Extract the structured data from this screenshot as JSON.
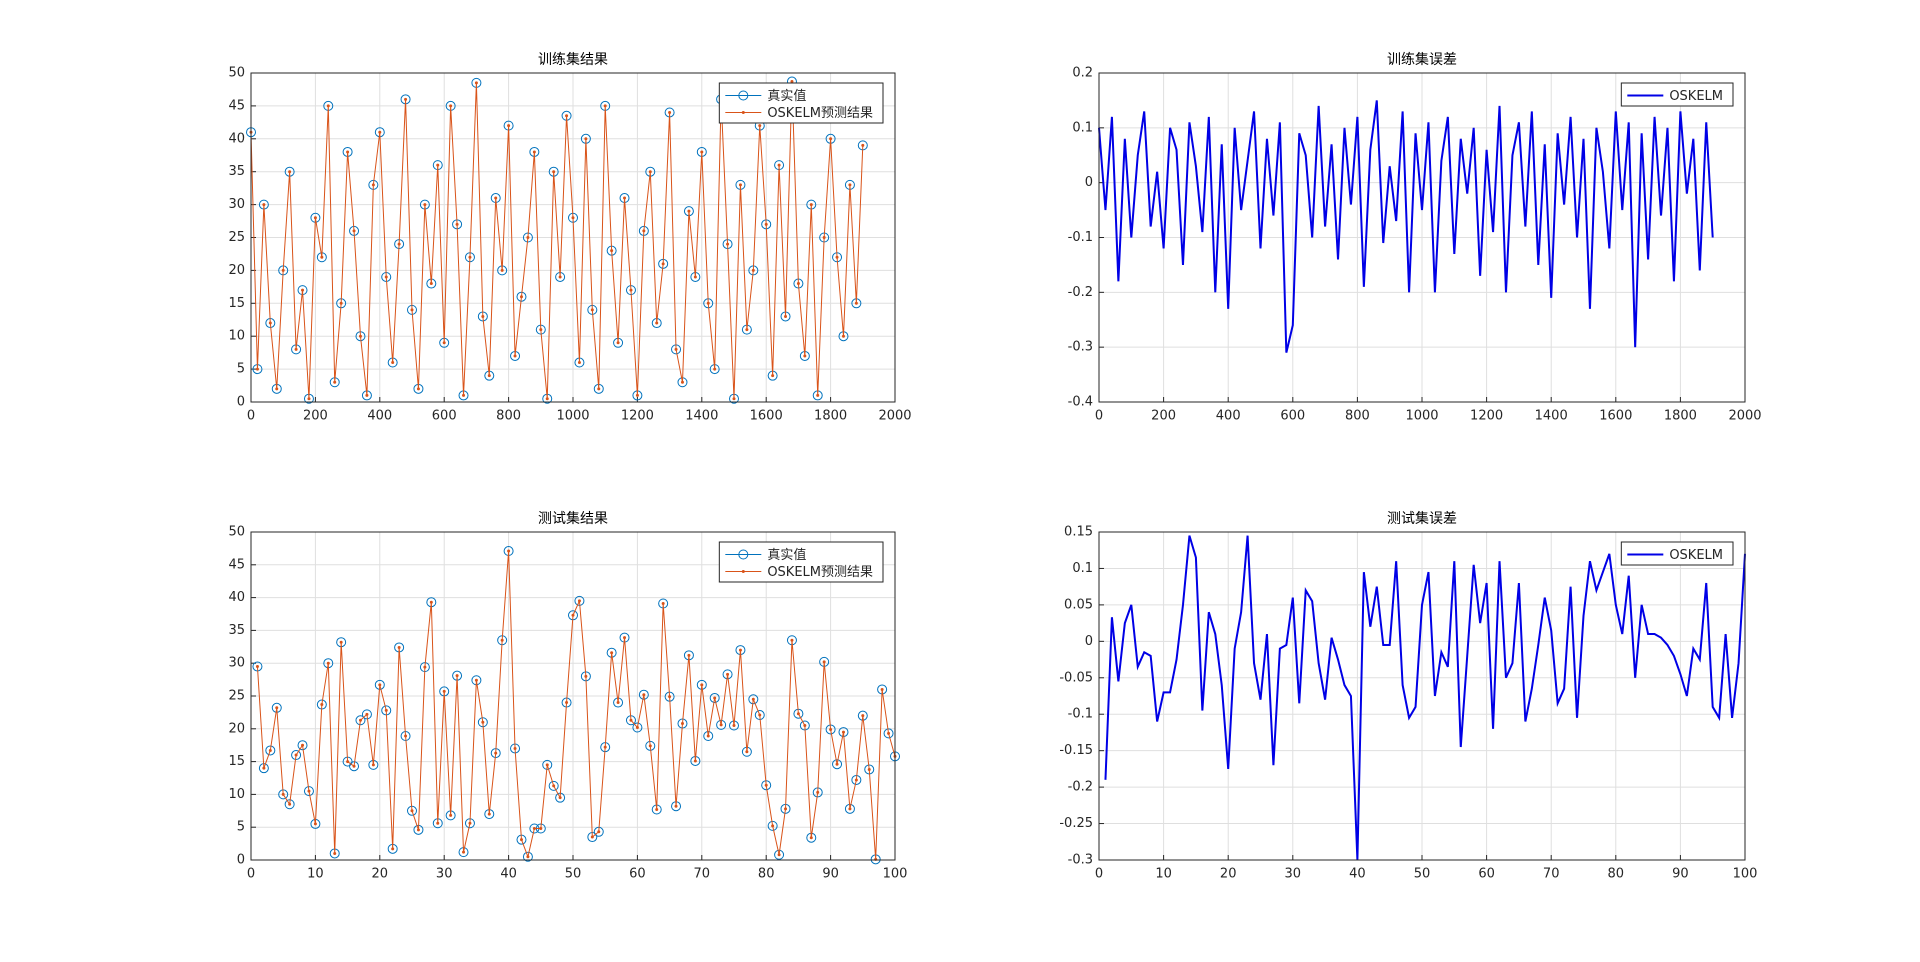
{
  "chart_data": [
    {
      "type": "line",
      "title": "训练集结果",
      "x": [
        0,
        20,
        40,
        60,
        80,
        100,
        120,
        140,
        160,
        180,
        200,
        220,
        240,
        260,
        280,
        300,
        320,
        340,
        360,
        380,
        400,
        420,
        440,
        460,
        480,
        500,
        520,
        540,
        560,
        580,
        600,
        620,
        640,
        660,
        680,
        700,
        720,
        740,
        760,
        780,
        800,
        820,
        840,
        860,
        880,
        900,
        920,
        940,
        960,
        980,
        1000,
        1020,
        1040,
        1060,
        1080,
        1100,
        1120,
        1140,
        1160,
        1180,
        1200,
        1220,
        1240,
        1260,
        1280,
        1300,
        1320,
        1340,
        1360,
        1380,
        1400,
        1420,
        1440,
        1460,
        1480,
        1500,
        1520,
        1540,
        1560,
        1580,
        1600,
        1620,
        1640,
        1660,
        1680,
        1700,
        1720,
        1740,
        1760,
        1780,
        1800,
        1820,
        1840,
        1860,
        1880,
        1900
      ],
      "series": [
        {
          "name": "真实值",
          "color": "#0072bd",
          "marker": "circle",
          "line": false,
          "values": [
            41,
            5,
            30,
            12,
            2,
            20,
            35,
            8,
            17,
            0.5,
            28,
            22,
            45,
            3,
            15,
            38,
            26,
            10,
            1,
            33,
            41,
            19,
            6,
            24,
            46,
            14,
            2,
            30,
            18,
            36,
            9,
            45,
            27,
            1,
            22,
            48.5,
            13,
            4,
            31,
            20,
            42,
            7,
            16,
            25,
            38,
            11,
            0.5,
            35,
            19,
            43.5,
            28,
            6,
            40,
            14,
            2,
            45,
            23,
            9,
            31,
            17,
            1,
            26,
            35,
            12,
            21,
            44,
            8,
            3,
            29,
            19,
            38,
            15,
            5,
            46,
            24,
            0.5,
            33,
            11,
            20,
            42,
            27,
            4,
            36,
            13,
            48.7,
            18,
            7,
            30,
            1,
            25,
            40,
            22,
            10,
            33,
            15,
            39
          ]
        },
        {
          "name": "OSKELM预测结果",
          "color": "#d95319",
          "marker": "dot",
          "line": true,
          "values": [
            41,
            5,
            30,
            12,
            2,
            20,
            35,
            8,
            17,
            0.5,
            28,
            22,
            45,
            3,
            15,
            38,
            26,
            10,
            1,
            33,
            41,
            19,
            6,
            24,
            46,
            14,
            2,
            30,
            18,
            36,
            9,
            45,
            27,
            1,
            22,
            48.5,
            13,
            4,
            31,
            20,
            42,
            7,
            16,
            25,
            38,
            11,
            0.5,
            35,
            19,
            43.5,
            28,
            6,
            40,
            14,
            2,
            45,
            23,
            9,
            31,
            17,
            1,
            26,
            35,
            12,
            21,
            44,
            8,
            3,
            29,
            19,
            38,
            15,
            5,
            46,
            24,
            0.5,
            33,
            11,
            20,
            42,
            27,
            4,
            36,
            13,
            48.7,
            18,
            7,
            30,
            1,
            25,
            40,
            22,
            10,
            33,
            15,
            39
          ]
        }
      ],
      "xlim": [
        0,
        2000
      ],
      "ylim": [
        0,
        50
      ],
      "xticks": [
        0,
        200,
        400,
        600,
        800,
        1000,
        1200,
        1400,
        1600,
        1800,
        2000
      ],
      "yticks": [
        0,
        5,
        10,
        15,
        20,
        25,
        30,
        35,
        40,
        45,
        50
      ],
      "grid": true,
      "legend": "upper right"
    },
    {
      "type": "line",
      "title": "训练集误差",
      "x": [
        0,
        20,
        40,
        60,
        80,
        100,
        120,
        140,
        160,
        180,
        200,
        220,
        240,
        260,
        280,
        300,
        320,
        340,
        360,
        380,
        400,
        420,
        440,
        460,
        480,
        500,
        520,
        540,
        560,
        580,
        600,
        620,
        640,
        660,
        680,
        700,
        720,
        740,
        760,
        780,
        800,
        820,
        840,
        860,
        880,
        900,
        920,
        940,
        960,
        980,
        1000,
        1020,
        1040,
        1060,
        1080,
        1100,
        1120,
        1140,
        1160,
        1180,
        1200,
        1220,
        1240,
        1260,
        1280,
        1300,
        1320,
        1340,
        1360,
        1380,
        1400,
        1420,
        1440,
        1460,
        1480,
        1500,
        1520,
        1540,
        1560,
        1580,
        1600,
        1620,
        1640,
        1660,
        1680,
        1700,
        1720,
        1740,
        1760,
        1780,
        1800,
        1820,
        1840,
        1860,
        1880,
        1900
      ],
      "series": [
        {
          "name": "OSKELM",
          "color": "#0000e6",
          "line": true,
          "values": [
            0.1,
            -0.05,
            0.12,
            -0.18,
            0.08,
            -0.1,
            0.05,
            0.13,
            -0.08,
            0.02,
            -0.12,
            0.1,
            0.06,
            -0.15,
            0.11,
            0.03,
            -0.09,
            0.12,
            -0.2,
            0.07,
            -0.23,
            0.1,
            -0.05,
            0.04,
            0.13,
            -0.12,
            0.08,
            -0.06,
            0.11,
            -0.31,
            -0.26,
            0.09,
            0.05,
            -0.1,
            0.14,
            -0.08,
            0.07,
            -0.14,
            0.1,
            -0.04,
            0.12,
            -0.19,
            0.06,
            0.15,
            -0.11,
            0.03,
            -0.07,
            0.13,
            -0.2,
            0.09,
            -0.05,
            0.11,
            -0.2,
            0.04,
            0.12,
            -0.13,
            0.08,
            -0.02,
            0.1,
            -0.17,
            0.06,
            -0.09,
            0.14,
            -0.2,
            0.05,
            0.11,
            -0.08,
            0.13,
            -0.15,
            0.07,
            -0.21,
            0.09,
            -0.04,
            0.12,
            -0.1,
            0.08,
            -0.23,
            0.1,
            0.02,
            -0.12,
            0.13,
            -0.05,
            0.11,
            -0.3,
            0.09,
            -0.14,
            0.12,
            -0.06,
            0.1,
            -0.18,
            0.13,
            -0.02,
            0.08,
            -0.16,
            0.11,
            -0.1
          ]
        }
      ],
      "xlim": [
        0,
        2000
      ],
      "ylim": [
        -0.4,
        0.2
      ],
      "xticks": [
        0,
        200,
        400,
        600,
        800,
        1000,
        1200,
        1400,
        1600,
        1800,
        2000
      ],
      "yticks": [
        -0.4,
        -0.3,
        -0.2,
        -0.1,
        0,
        0.1,
        0.2
      ],
      "grid": true,
      "legend": "upper right"
    },
    {
      "type": "line",
      "title": "测试集结果",
      "x": [
        1,
        2,
        3,
        4,
        5,
        6,
        7,
        8,
        9,
        10,
        11,
        12,
        13,
        14,
        15,
        16,
        17,
        18,
        19,
        20,
        21,
        22,
        23,
        24,
        25,
        26,
        27,
        28,
        29,
        30,
        31,
        32,
        33,
        34,
        35,
        36,
        37,
        38,
        39,
        40,
        41,
        42,
        43,
        44,
        45,
        46,
        47,
        48,
        49,
        50,
        51,
        52,
        53,
        54,
        55,
        56,
        57,
        58,
        59,
        60,
        61,
        62,
        63,
        64,
        65,
        66,
        67,
        68,
        69,
        70,
        71,
        72,
        73,
        74,
        75,
        76,
        77,
        78,
        79,
        80,
        81,
        82,
        83,
        84,
        85,
        86,
        87,
        88,
        89,
        90,
        91,
        92,
        93,
        94,
        95,
        96,
        97,
        98,
        99,
        100
      ],
      "series": [
        {
          "name": "真实值",
          "color": "#0072bd",
          "marker": "circle",
          "line": false,
          "values": [
            29.5,
            14,
            16.7,
            23.2,
            10,
            8.5,
            16,
            17.5,
            10.5,
            5.5,
            23.7,
            30,
            1,
            33.2,
            15,
            14.3,
            21.3,
            22.2,
            14.5,
            26.7,
            22.8,
            1.7,
            32.4,
            18.9,
            7.5,
            4.6,
            29.4,
            39.3,
            5.6,
            25.7,
            6.8,
            28.1,
            1.2,
            5.6,
            27.4,
            21,
            7,
            16.3,
            33.5,
            47.1,
            17,
            3.1,
            0.5,
            4.8,
            4.8,
            14.5,
            11.3,
            9.5,
            24,
            37.3,
            39.5,
            28,
            3.5,
            4.3,
            17.2,
            31.6,
            24,
            33.9,
            21.3,
            20.2,
            25.2,
            17.4,
            7.7,
            39.1,
            24.9,
            8.2,
            20.8,
            31.2,
            15.1,
            26.7,
            18.9,
            24.7,
            20.6,
            28.3,
            20.5,
            32,
            16.5,
            24.5,
            22.1,
            11.4,
            5.2,
            0.8,
            7.8,
            33.5,
            22.3,
            20.5,
            3.4,
            10.3,
            30.2,
            19.9,
            14.6,
            19.5,
            7.8,
            12.2,
            22,
            13.8,
            0.1,
            26,
            19.3,
            15.8
          ]
        },
        {
          "name": "OSKELM预测结果",
          "color": "#d95319",
          "marker": "dot",
          "line": true,
          "values": [
            29.5,
            14,
            16.7,
            23.2,
            10,
            8.5,
            16,
            17.5,
            10.5,
            5.5,
            23.7,
            30,
            1,
            33.2,
            15,
            14.3,
            21.3,
            22.2,
            14.5,
            26.7,
            22.8,
            1.7,
            32.4,
            18.9,
            7.5,
            4.6,
            29.4,
            39.3,
            5.6,
            25.7,
            6.8,
            28.1,
            1.2,
            5.6,
            27.4,
            21,
            7,
            16.3,
            33.5,
            47.1,
            17,
            3.1,
            0.5,
            4.8,
            4.8,
            14.5,
            11.3,
            9.5,
            24,
            37.3,
            39.5,
            28,
            3.5,
            4.3,
            17.2,
            31.6,
            24,
            33.9,
            21.3,
            20.2,
            25.2,
            17.4,
            7.7,
            39.1,
            24.9,
            8.2,
            20.8,
            31.2,
            15.1,
            26.7,
            18.9,
            24.7,
            20.6,
            28.3,
            20.5,
            32,
            16.5,
            24.5,
            22.1,
            11.4,
            5.2,
            0.8,
            7.8,
            33.5,
            22.3,
            20.5,
            3.4,
            10.3,
            30.2,
            19.9,
            14.6,
            19.5,
            7.8,
            12.2,
            22,
            13.8,
            0.1,
            26,
            19.3,
            15.8
          ]
        }
      ],
      "xlim": [
        0,
        100
      ],
      "ylim": [
        0,
        50
      ],
      "xticks": [
        0,
        10,
        20,
        30,
        40,
        50,
        60,
        70,
        80,
        90,
        100
      ],
      "yticks": [
        0,
        5,
        10,
        15,
        20,
        25,
        30,
        35,
        40,
        45,
        50
      ],
      "grid": true,
      "legend": "upper right"
    },
    {
      "type": "line",
      "title": "测试集误差",
      "x": [
        1,
        2,
        3,
        4,
        5,
        6,
        7,
        8,
        9,
        10,
        11,
        12,
        13,
        14,
        15,
        16,
        17,
        18,
        19,
        20,
        21,
        22,
        23,
        24,
        25,
        26,
        27,
        28,
        29,
        30,
        31,
        32,
        33,
        34,
        35,
        36,
        37,
        38,
        39,
        40,
        41,
        42,
        43,
        44,
        45,
        46,
        47,
        48,
        49,
        50,
        51,
        52,
        53,
        54,
        55,
        56,
        57,
        58,
        59,
        60,
        61,
        62,
        63,
        64,
        65,
        66,
        67,
        68,
        69,
        70,
        71,
        72,
        73,
        74,
        75,
        76,
        77,
        78,
        79,
        80,
        81,
        82,
        83,
        84,
        85,
        86,
        87,
        88,
        89,
        90,
        91,
        92,
        93,
        94,
        95,
        96,
        97,
        98,
        99,
        100
      ],
      "series": [
        {
          "name": "OSKELM",
          "color": "#0000e6",
          "line": true,
          "values": [
            -0.19,
            0.033,
            -0.055,
            0.025,
            0.05,
            -0.035,
            -0.015,
            -0.02,
            -0.11,
            -0.07,
            -0.07,
            -0.025,
            0.05,
            0.145,
            0.115,
            -0.095,
            0.04,
            0.01,
            -0.06,
            -0.175,
            -0.01,
            0.04,
            0.145,
            -0.03,
            -0.08,
            0.01,
            -0.17,
            -0.01,
            -0.005,
            0.06,
            -0.085,
            0.07,
            0.055,
            -0.03,
            -0.08,
            0.005,
            -0.025,
            -0.06,
            -0.075,
            -0.3,
            0.095,
            0.02,
            0.075,
            -0.005,
            -0.005,
            0.11,
            -0.06,
            -0.105,
            -0.09,
            0.05,
            0.095,
            -0.075,
            -0.015,
            -0.035,
            0.11,
            -0.145,
            -0.02,
            0.105,
            0.025,
            0.08,
            -0.12,
            0.11,
            -0.05,
            -0.03,
            0.08,
            -0.11,
            -0.065,
            -0.005,
            0.06,
            0.015,
            -0.085,
            -0.065,
            0.075,
            -0.105,
            0.035,
            0.11,
            0.07,
            0.095,
            0.12,
            0.05,
            0.01,
            0.09,
            -0.05,
            0.05,
            0.01,
            0.01,
            0.005,
            -0.005,
            -0.02,
            -0.045,
            -0.075,
            -0.01,
            -0.025,
            0.08,
            -0.09,
            -0.105,
            0.01,
            -0.105,
            -0.03,
            0.12
          ]
        }
      ],
      "xlim": [
        0,
        100
      ],
      "ylim": [
        -0.3,
        0.15
      ],
      "xticks": [
        0,
        10,
        20,
        30,
        40,
        50,
        60,
        70,
        80,
        90,
        100
      ],
      "yticks": [
        -0.3,
        -0.25,
        -0.2,
        -0.15,
        -0.1,
        -0.05,
        0,
        0.05,
        0.1,
        0.15
      ],
      "grid": true,
      "legend": "upper right"
    }
  ]
}
